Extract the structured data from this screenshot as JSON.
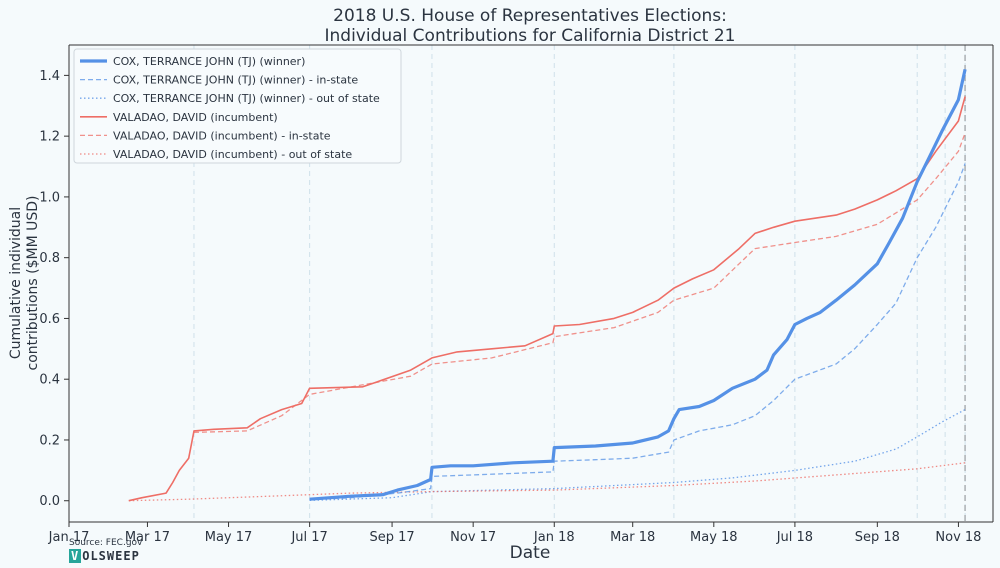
{
  "chart_data": {
    "type": "line",
    "title": [
      "2018 U.S. House of Representatives Elections:",
      "Individual Contributions for California District 21"
    ],
    "xlabel": "Date",
    "ylabel": [
      "Cumulative individual",
      "contributions ($MM USD)"
    ],
    "x_ticks": [
      {
        "date": "2017-01-01",
        "label": "Jan 17"
      },
      {
        "date": "2017-03-01",
        "label": "Mar 17"
      },
      {
        "date": "2017-05-01",
        "label": "May 17"
      },
      {
        "date": "2017-07-01",
        "label": "Jul 17"
      },
      {
        "date": "2017-09-01",
        "label": "Sep 17"
      },
      {
        "date": "2017-11-01",
        "label": "Nov 17"
      },
      {
        "date": "2018-01-01",
        "label": "Jan 18"
      },
      {
        "date": "2018-03-01",
        "label": "Mar 18"
      },
      {
        "date": "2018-05-01",
        "label": "May 18"
      },
      {
        "date": "2018-07-01",
        "label": "Jul 18"
      },
      {
        "date": "2018-09-01",
        "label": "Sep 18"
      },
      {
        "date": "2018-11-01",
        "label": "Nov 18"
      }
    ],
    "y_ticks": [
      "0.0",
      "0.2",
      "0.4",
      "0.6",
      "0.8",
      "1.0",
      "1.2",
      "1.4"
    ],
    "xlim": [
      "2017-01-01",
      "2018-11-27"
    ],
    "ylim": [
      -0.07,
      1.5
    ],
    "grid": "vertical dashed lines at event dates",
    "event_dates": [
      "2017-04-05",
      "2017-07-01",
      "2017-10-01",
      "2018-01-01",
      "2018-04-01",
      "2018-07-01",
      "2018-10-01",
      "2018-10-22",
      "2018-11-06"
    ],
    "election_date": "2018-11-06",
    "legend_position": "top-left",
    "colors": {
      "cox": "#5591e6",
      "valadao": "#ee6e66"
    },
    "series": [
      {
        "name": "COX, TERRANCE JOHN (TJ) (winner)",
        "style": "solid-thick",
        "color": "#5591e6",
        "points": [
          [
            "2017-07-01",
            0.005
          ],
          [
            "2017-08-01",
            0.015
          ],
          [
            "2017-08-25",
            0.02
          ],
          [
            "2017-09-05",
            0.035
          ],
          [
            "2017-09-20",
            0.05
          ],
          [
            "2017-09-30",
            0.07
          ],
          [
            "2017-10-01",
            0.11
          ],
          [
            "2017-10-15",
            0.115
          ],
          [
            "2017-11-01",
            0.115
          ],
          [
            "2017-12-01",
            0.125
          ],
          [
            "2017-12-31",
            0.13
          ],
          [
            "2018-01-01",
            0.175
          ],
          [
            "2018-02-01",
            0.18
          ],
          [
            "2018-03-01",
            0.19
          ],
          [
            "2018-03-20",
            0.21
          ],
          [
            "2018-03-28",
            0.23
          ],
          [
            "2018-04-01",
            0.27
          ],
          [
            "2018-04-05",
            0.3
          ],
          [
            "2018-04-20",
            0.31
          ],
          [
            "2018-05-01",
            0.33
          ],
          [
            "2018-05-15",
            0.37
          ],
          [
            "2018-06-01",
            0.4
          ],
          [
            "2018-06-10",
            0.43
          ],
          [
            "2018-06-15",
            0.48
          ],
          [
            "2018-06-25",
            0.53
          ],
          [
            "2018-07-01",
            0.58
          ],
          [
            "2018-07-10",
            0.6
          ],
          [
            "2018-07-20",
            0.62
          ],
          [
            "2018-08-01",
            0.66
          ],
          [
            "2018-08-15",
            0.71
          ],
          [
            "2018-09-01",
            0.78
          ],
          [
            "2018-09-10",
            0.85
          ],
          [
            "2018-09-20",
            0.93
          ],
          [
            "2018-10-01",
            1.05
          ],
          [
            "2018-10-10",
            1.13
          ],
          [
            "2018-10-20",
            1.22
          ],
          [
            "2018-11-01",
            1.32
          ],
          [
            "2018-11-06",
            1.42
          ]
        ]
      },
      {
        "name": "COX, TERRANCE JOHN (TJ) (winner) - in-state",
        "style": "dashed",
        "color": "#5591e6",
        "points": [
          [
            "2017-07-01",
            0.003
          ],
          [
            "2017-08-01",
            0.01
          ],
          [
            "2017-09-05",
            0.025
          ],
          [
            "2017-09-30",
            0.04
          ],
          [
            "2017-10-01",
            0.08
          ],
          [
            "2017-11-01",
            0.085
          ],
          [
            "2017-12-31",
            0.095
          ],
          [
            "2018-01-01",
            0.13
          ],
          [
            "2018-02-01",
            0.135
          ],
          [
            "2018-03-01",
            0.14
          ],
          [
            "2018-03-28",
            0.16
          ],
          [
            "2018-04-01",
            0.2
          ],
          [
            "2018-04-20",
            0.23
          ],
          [
            "2018-05-15",
            0.25
          ],
          [
            "2018-06-01",
            0.28
          ],
          [
            "2018-06-15",
            0.33
          ],
          [
            "2018-07-01",
            0.4
          ],
          [
            "2018-08-01",
            0.45
          ],
          [
            "2018-08-15",
            0.5
          ],
          [
            "2018-09-01",
            0.58
          ],
          [
            "2018-09-15",
            0.65
          ],
          [
            "2018-10-01",
            0.8
          ],
          [
            "2018-10-15",
            0.9
          ],
          [
            "2018-11-01",
            1.05
          ],
          [
            "2018-11-06",
            1.11
          ]
        ]
      },
      {
        "name": "COX, TERRANCE JOHN (TJ) (winner) - out of state",
        "style": "dotted",
        "color": "#5591e6",
        "points": [
          [
            "2017-07-01",
            0.001
          ],
          [
            "2017-09-01",
            0.01
          ],
          [
            "2017-10-01",
            0.03
          ],
          [
            "2018-01-01",
            0.04
          ],
          [
            "2018-04-01",
            0.06
          ],
          [
            "2018-05-15",
            0.075
          ],
          [
            "2018-07-01",
            0.1
          ],
          [
            "2018-08-15",
            0.13
          ],
          [
            "2018-09-15",
            0.17
          ],
          [
            "2018-10-01",
            0.21
          ],
          [
            "2018-10-20",
            0.26
          ],
          [
            "2018-11-06",
            0.3
          ]
        ]
      },
      {
        "name": "VALADAO, DAVID (incumbent)",
        "style": "solid",
        "color": "#ee6e66",
        "points": [
          [
            "2017-02-15",
            0.0
          ],
          [
            "2017-02-25",
            0.01
          ],
          [
            "2017-03-15",
            0.025
          ],
          [
            "2017-03-20",
            0.06
          ],
          [
            "2017-03-25",
            0.1
          ],
          [
            "2017-04-01",
            0.14
          ],
          [
            "2017-04-05",
            0.23
          ],
          [
            "2017-04-20",
            0.235
          ],
          [
            "2017-05-15",
            0.24
          ],
          [
            "2017-05-25",
            0.27
          ],
          [
            "2017-06-10",
            0.3
          ],
          [
            "2017-06-25",
            0.32
          ],
          [
            "2017-07-01",
            0.37
          ],
          [
            "2017-08-10",
            0.375
          ],
          [
            "2017-08-20",
            0.39
          ],
          [
            "2017-09-15",
            0.43
          ],
          [
            "2017-10-01",
            0.47
          ],
          [
            "2017-10-20",
            0.49
          ],
          [
            "2017-11-15",
            0.5
          ],
          [
            "2017-12-10",
            0.51
          ],
          [
            "2017-12-31",
            0.55
          ],
          [
            "2018-01-01",
            0.575
          ],
          [
            "2018-01-20",
            0.58
          ],
          [
            "2018-02-15",
            0.6
          ],
          [
            "2018-03-01",
            0.62
          ],
          [
            "2018-03-20",
            0.66
          ],
          [
            "2018-04-01",
            0.7
          ],
          [
            "2018-04-15",
            0.73
          ],
          [
            "2018-05-01",
            0.76
          ],
          [
            "2018-05-20",
            0.83
          ],
          [
            "2018-06-01",
            0.88
          ],
          [
            "2018-06-15",
            0.9
          ],
          [
            "2018-07-01",
            0.92
          ],
          [
            "2018-08-01",
            0.94
          ],
          [
            "2018-08-15",
            0.96
          ],
          [
            "2018-09-01",
            0.99
          ],
          [
            "2018-09-15",
            1.02
          ],
          [
            "2018-10-01",
            1.06
          ],
          [
            "2018-10-15",
            1.15
          ],
          [
            "2018-11-01",
            1.25
          ],
          [
            "2018-11-06",
            1.33
          ]
        ]
      },
      {
        "name": "VALADAO, DAVID (incumbent) - in-state",
        "style": "dashed",
        "color": "#ee6e66",
        "points": [
          [
            "2017-04-05",
            0.225
          ],
          [
            "2017-05-15",
            0.23
          ],
          [
            "2017-06-10",
            0.28
          ],
          [
            "2017-07-01",
            0.35
          ],
          [
            "2017-09-15",
            0.41
          ],
          [
            "2017-10-01",
            0.45
          ],
          [
            "2017-11-15",
            0.47
          ],
          [
            "2017-12-31",
            0.52
          ],
          [
            "2018-01-01",
            0.54
          ],
          [
            "2018-02-15",
            0.57
          ],
          [
            "2018-03-20",
            0.62
          ],
          [
            "2018-04-01",
            0.66
          ],
          [
            "2018-05-01",
            0.7
          ],
          [
            "2018-05-20",
            0.78
          ],
          [
            "2018-06-01",
            0.83
          ],
          [
            "2018-07-01",
            0.85
          ],
          [
            "2018-08-01",
            0.87
          ],
          [
            "2018-09-01",
            0.91
          ],
          [
            "2018-10-01",
            0.99
          ],
          [
            "2018-10-15",
            1.06
          ],
          [
            "2018-11-01",
            1.15
          ],
          [
            "2018-11-06",
            1.21
          ]
        ]
      },
      {
        "name": "VALADAO, DAVID (incumbent) - out of state",
        "style": "dotted",
        "color": "#ee6e66",
        "points": [
          [
            "2017-02-15",
            0.0
          ],
          [
            "2017-04-01",
            0.005
          ],
          [
            "2017-06-01",
            0.015
          ],
          [
            "2017-08-01",
            0.025
          ],
          [
            "2017-10-01",
            0.03
          ],
          [
            "2018-01-01",
            0.035
          ],
          [
            "2018-04-01",
            0.05
          ],
          [
            "2018-06-01",
            0.065
          ],
          [
            "2018-08-01",
            0.085
          ],
          [
            "2018-10-01",
            0.105
          ],
          [
            "2018-11-06",
            0.125
          ]
        ]
      }
    ]
  },
  "source": "Source: FEC.gov",
  "logo_text": {
    "first": "V",
    "rest": "OLSWEEP"
  }
}
